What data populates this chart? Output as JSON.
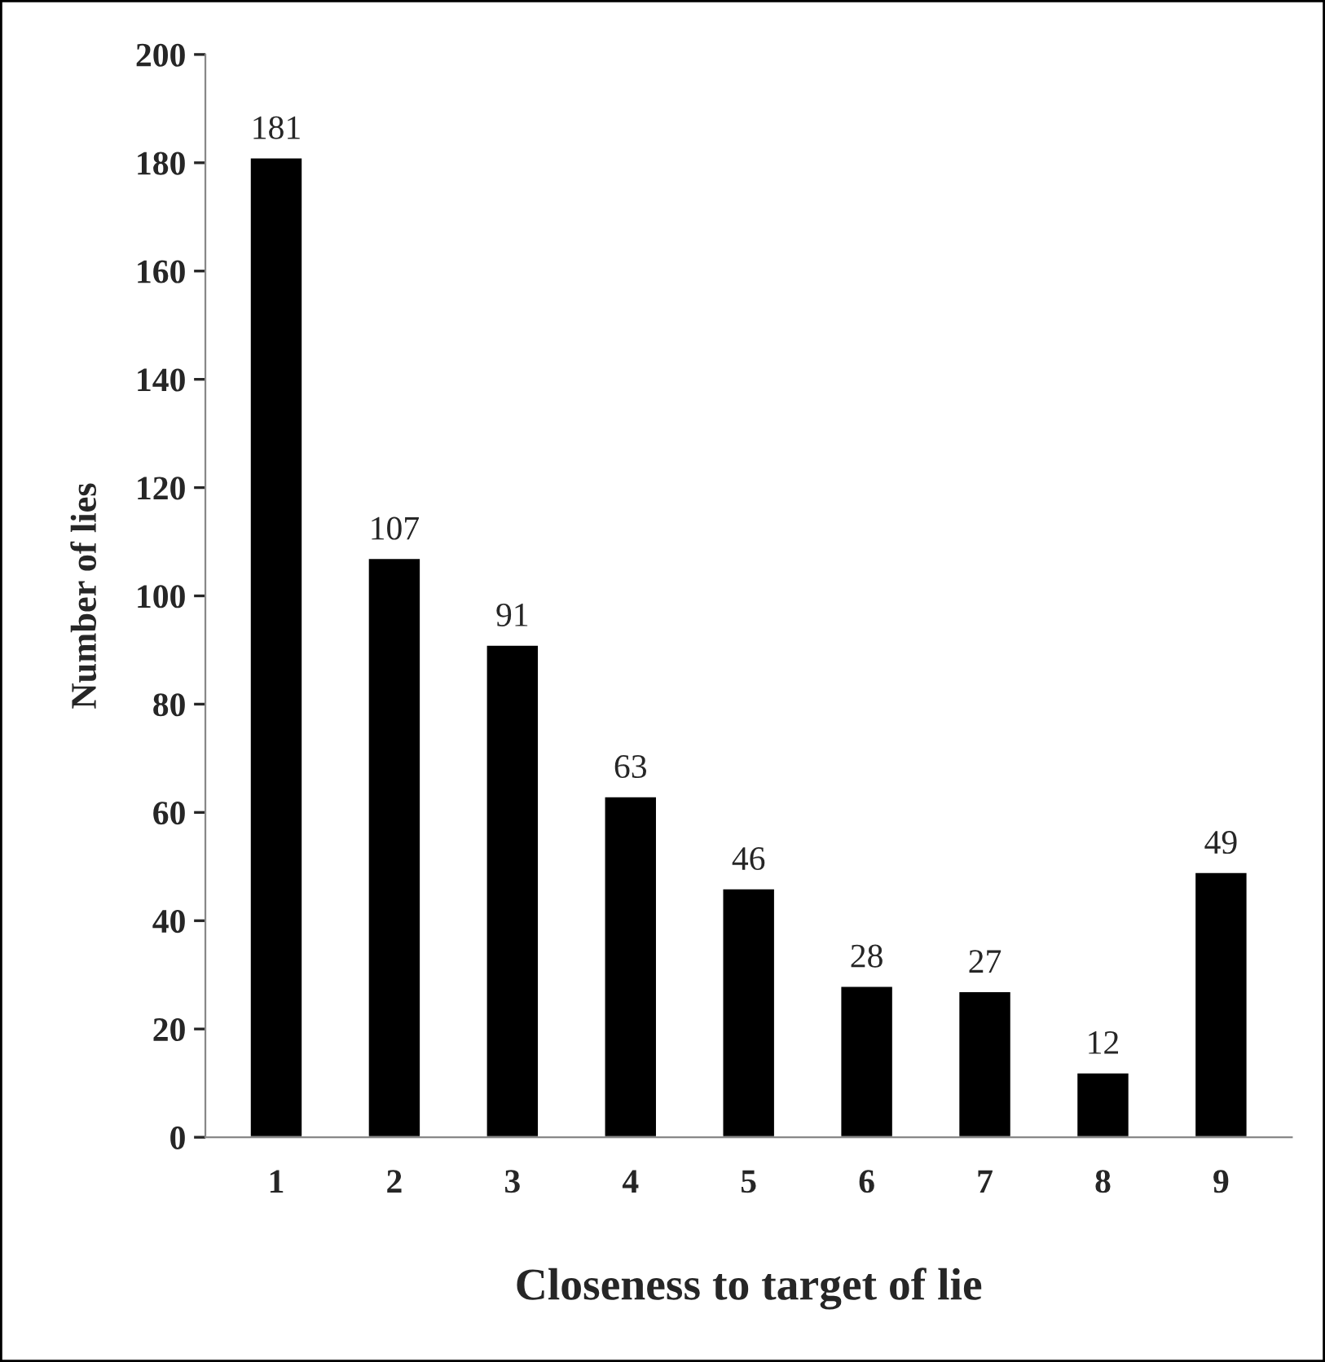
{
  "chart_data": {
    "type": "bar",
    "xlabel": "Closeness to target of lie",
    "ylabel": "Number of lies",
    "categories": [
      "1",
      "2",
      "3",
      "4",
      "5",
      "6",
      "7",
      "8",
      "9"
    ],
    "values": [
      181,
      107,
      91,
      63,
      46,
      28,
      27,
      12,
      49
    ],
    "color": "#000000",
    "ylim": [
      0,
      200
    ],
    "yticks": [
      0,
      20,
      40,
      60,
      80,
      100,
      120,
      140,
      160,
      180,
      200
    ],
    "data_labels": true
  }
}
